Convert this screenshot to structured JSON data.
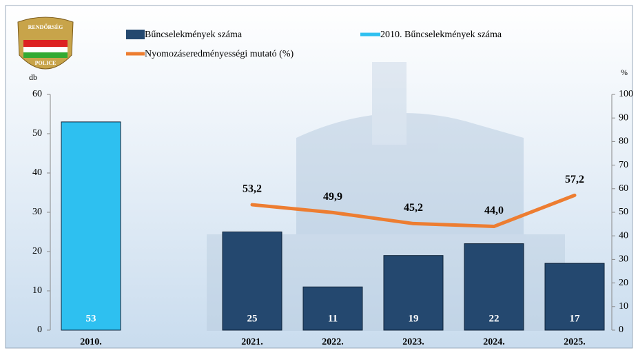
{
  "chart_data": {
    "type": "bar_line",
    "categories": [
      "2010.",
      null,
      "2021.",
      "2022.",
      "2023.",
      "2024.",
      "2025."
    ],
    "series": [
      {
        "name": "Bűncselekmények száma",
        "color": "#24486f",
        "type": "bar",
        "values": [
          null,
          null,
          25,
          11,
          19,
          22,
          17
        ]
      },
      {
        "name": "2010. Bűncselekmények száma",
        "color": "#2ec0f0",
        "type": "bar",
        "values": [
          53,
          null,
          null,
          null,
          null,
          null,
          null
        ]
      },
      {
        "name": "Nyomozáseredményességi mutató (%)",
        "color": "#ed7d31",
        "type": "line",
        "axis": "y2",
        "values": [
          null,
          null,
          53.2,
          49.9,
          45.2,
          44.0,
          57.2
        ],
        "value_labels": [
          null,
          null,
          "53,2",
          "49,9",
          "45,2",
          "44,0",
          "57,2"
        ]
      }
    ],
    "y_label": "db",
    "y2_label": "%",
    "ylim": [
      0,
      60
    ],
    "yticks": [
      0,
      10,
      20,
      30,
      40,
      50,
      60
    ],
    "y2lim": [
      0,
      100
    ],
    "y2ticks": [
      0,
      10,
      20,
      30,
      40,
      50,
      60,
      70,
      80,
      90,
      100
    ],
    "logo_top": "RENDŐRSÉG",
    "logo_bottom": "POLICE"
  }
}
